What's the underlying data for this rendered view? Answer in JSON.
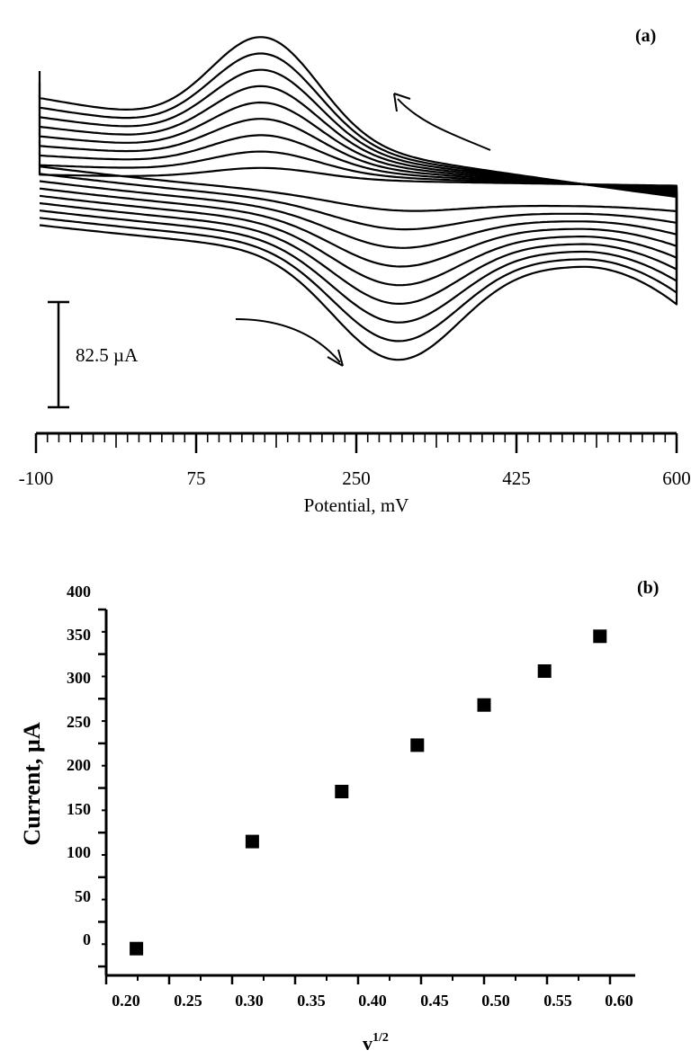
{
  "chart_data": [
    {
      "panel_label": "(a)",
      "type": "line",
      "xlabel": "Potential, mV",
      "xlim": [
        -100,
        600
      ],
      "x_ticks": [
        -100,
        75,
        250,
        425,
        600
      ],
      "scale_bar_label": "82.5 µA",
      "curve_count": 9,
      "series": [
        {
          "values": [
            [
              -100,
              8.0
            ],
            [
              -50,
              8.5
            ],
            [
              0,
              9.0
            ],
            [
              50,
              10.0
            ],
            [
              100,
              12.0
            ],
            [
              150,
              11.0
            ],
            [
              200,
              7.0
            ],
            [
              250,
              4.0
            ],
            [
              300,
              2.0
            ],
            [
              350,
              1.2
            ],
            [
              400,
              0.6
            ],
            [
              450,
              0.2
            ],
            [
              500,
              0
            ],
            [
              550,
              -0.5
            ],
            [
              600,
              -1.5
            ]
          ]
        }
      ]
    },
    {
      "panel_label": "(b)",
      "type": "scatter",
      "ylabel": "Current, µA",
      "xlabel_base": "v",
      "xlabel_exponent": "1/2",
      "xlim": [
        0.2,
        0.62
      ],
      "ylim": [
        -10,
        400
      ],
      "x_ticks": [
        "0.20",
        "0.25",
        "0.30",
        "0.35",
        "0.40",
        "0.45",
        "0.50",
        "0.55",
        "0.60"
      ],
      "y_ticks": [
        "0",
        "50",
        "100",
        "150",
        "200",
        "250",
        "300",
        "350",
        "400"
      ],
      "x": [
        0.224,
        0.316,
        0.387,
        0.447,
        0.5,
        0.548,
        0.592
      ],
      "y": [
        20,
        140,
        196,
        248,
        293,
        331,
        370
      ]
    }
  ]
}
